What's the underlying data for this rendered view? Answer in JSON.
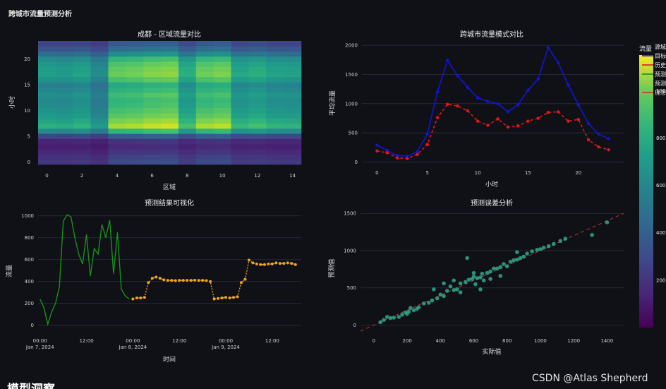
{
  "page": {
    "title": "跨城市流量预测分析",
    "watermark": "CSDN @Atlas Shepherd",
    "bottom_heading": "模型洞察"
  },
  "colors": {
    "background": "#0f1117",
    "target": "#1414d6",
    "history": "#e01818",
    "pred_actual": "#1a8f1a",
    "pred_forecast": "#f2a31b",
    "scatter": "#2fa88a",
    "ideal": "#c0392b"
  },
  "colorbar": {
    "title": "流量",
    "ticks": [
      "200",
      "400",
      "600",
      "800",
      "1000"
    ]
  },
  "legend": {
    "items": [
      "源城",
      "目标",
      "历史",
      "预测",
      "预测",
      "理想"
    ]
  },
  "chart_data": [
    {
      "type": "heatmap",
      "title": "成都 - 区域流量对比",
      "xlabel": "区域",
      "ylabel": "小时",
      "x_ticks": [
        "0",
        "2",
        "4",
        "6",
        "8",
        "10",
        "12",
        "14"
      ],
      "y_ticks": [
        "0",
        "5",
        "10",
        "15",
        "20"
      ],
      "xlim": [
        0,
        14
      ],
      "ylim": [
        0,
        23
      ],
      "zlim": [
        0,
        1150
      ],
      "zones": [
        0,
        1,
        2,
        3,
        4,
        5,
        6,
        7,
        8,
        9,
        10,
        11,
        12,
        13,
        14
      ],
      "hours": [
        0,
        1,
        2,
        3,
        4,
        5,
        6,
        7,
        8,
        9,
        10,
        11,
        12,
        13,
        14,
        15,
        16,
        17,
        18,
        19,
        20,
        21,
        22,
        23
      ],
      "zone_factor": [
        0.72,
        0.7,
        0.74,
        0.62,
        0.98,
        1.0,
        1.04,
        1.06,
        0.8,
        0.99,
        1.02,
        0.76,
        0.8,
        0.74,
        0.73
      ],
      "hour_profile": [
        260,
        230,
        180,
        140,
        170,
        340,
        760,
        1010,
        930,
        860,
        820,
        780,
        760,
        800,
        740,
        700,
        820,
        900,
        880,
        840,
        760,
        560,
        420,
        330
      ]
    },
    {
      "type": "line",
      "title": "跨城市流量模式对比",
      "xlabel": "小时",
      "ylabel": "平均流量",
      "x_ticks": [
        "0",
        "5",
        "10",
        "15",
        "20"
      ],
      "y_ticks": [
        "0",
        "500",
        "1000",
        "1500",
        "2000"
      ],
      "xlim": [
        -1.5,
        24.5
      ],
      "ylim": [
        -30,
        2050
      ],
      "x": [
        0,
        1,
        2,
        3,
        4,
        5,
        6,
        7,
        8,
        9,
        10,
        11,
        12,
        13,
        14,
        15,
        16,
        17,
        18,
        19,
        20,
        21,
        22,
        23
      ],
      "series": [
        {
          "name": "目标",
          "values": [
            290,
            200,
            110,
            100,
            180,
            480,
            1200,
            1740,
            1480,
            1280,
            1100,
            1040,
            1000,
            860,
            980,
            1230,
            1420,
            1960,
            1700,
            1320,
            980,
            660,
            480,
            400
          ]
        },
        {
          "name": "历史",
          "values": [
            190,
            160,
            70,
            60,
            130,
            300,
            760,
            990,
            960,
            880,
            700,
            630,
            740,
            600,
            620,
            700,
            750,
            850,
            860,
            700,
            730,
            380,
            260,
            210
          ]
        }
      ]
    },
    {
      "type": "line",
      "title": "预测结果可视化",
      "xlabel": "时间",
      "ylabel": "流量",
      "x_ticks": [
        {
          "label": "00:00",
          "sub": "Jan 7, 2024",
          "hours": 0
        },
        {
          "label": "12:00",
          "sub": "",
          "hours": 12
        },
        {
          "label": "00:00",
          "sub": "Jan 8, 2024",
          "hours": 24
        },
        {
          "label": "12:00",
          "sub": "",
          "hours": 36
        },
        {
          "label": "00:00",
          "sub": "Jan 9, 2024",
          "hours": 48
        },
        {
          "label": "12:00",
          "sub": "",
          "hours": 60
        }
      ],
      "y_ticks": [
        "0",
        "200",
        "400",
        "600",
        "800",
        "1000"
      ],
      "xlim": [
        -0.5,
        67.5
      ],
      "ylim": [
        -60,
        1050
      ],
      "series": [
        {
          "name": "实际",
          "style": "solid",
          "x": [
            0,
            1,
            2,
            3,
            4,
            5,
            6,
            7,
            8,
            9,
            10,
            11,
            12,
            13,
            14,
            15,
            16,
            17,
            18,
            19,
            20,
            21,
            22,
            23
          ],
          "values": [
            240,
            160,
            10,
            120,
            200,
            350,
            950,
            1010,
            990,
            800,
            650,
            560,
            830,
            450,
            700,
            650,
            920,
            800,
            960,
            470,
            850,
            330,
            270,
            240
          ]
        },
        {
          "name": "预测",
          "style": "dotted",
          "x": [
            24,
            25,
            26,
            27,
            28,
            29,
            30,
            31,
            32,
            33,
            34,
            35,
            36,
            37,
            38,
            39,
            40,
            41,
            42,
            43,
            44,
            45,
            46,
            47,
            48,
            49,
            50,
            51,
            52,
            53,
            54,
            55,
            56,
            57,
            58,
            59,
            60,
            61,
            62,
            63,
            64,
            65,
            66
          ],
          "values": [
            240,
            250,
            250,
            255,
            390,
            430,
            440,
            430,
            415,
            410,
            410,
            408,
            410,
            410,
            410,
            410,
            412,
            410,
            410,
            408,
            400,
            240,
            245,
            250,
            255,
            250,
            255,
            260,
            390,
            420,
            595,
            570,
            560,
            555,
            555,
            560,
            560,
            570,
            565,
            565,
            570,
            565,
            555
          ]
        }
      ]
    },
    {
      "type": "scatter",
      "title": "预测误差分析",
      "xlabel": "实际值",
      "ylabel": "预测值",
      "x_ticks": [
        "0",
        "200",
        "400",
        "600",
        "800",
        "1000",
        "1200",
        "1400"
      ],
      "y_ticks": [
        "0",
        "500",
        "1000",
        "1500"
      ],
      "xlim": [
        -80,
        1500
      ],
      "ylim": [
        -90,
        1540
      ],
      "points": [
        [
          40,
          40
        ],
        [
          60,
          70
        ],
        [
          80,
          110
        ],
        [
          100,
          95
        ],
        [
          120,
          100
        ],
        [
          150,
          110
        ],
        [
          170,
          140
        ],
        [
          190,
          170
        ],
        [
          200,
          150
        ],
        [
          210,
          180
        ],
        [
          220,
          230
        ],
        [
          240,
          200
        ],
        [
          260,
          220
        ],
        [
          270,
          240
        ],
        [
          300,
          290
        ],
        [
          330,
          300
        ],
        [
          350,
          330
        ],
        [
          380,
          360
        ],
        [
          400,
          410
        ],
        [
          420,
          390
        ],
        [
          440,
          460
        ],
        [
          460,
          520
        ],
        [
          480,
          470
        ],
        [
          500,
          480
        ],
        [
          520,
          560
        ],
        [
          550,
          580
        ],
        [
          570,
          610
        ],
        [
          590,
          620
        ],
        [
          600,
          650
        ],
        [
          610,
          550
        ],
        [
          620,
          630
        ],
        [
          640,
          640
        ],
        [
          650,
          690
        ],
        [
          660,
          600
        ],
        [
          680,
          700
        ],
        [
          700,
          720
        ],
        [
          720,
          760
        ],
        [
          740,
          760
        ],
        [
          760,
          780
        ],
        [
          780,
          820
        ],
        [
          800,
          790
        ],
        [
          820,
          850
        ],
        [
          840,
          870
        ],
        [
          860,
          880
        ],
        [
          880,
          900
        ],
        [
          900,
          920
        ],
        [
          920,
          960
        ],
        [
          950,
          990
        ],
        [
          980,
          1010
        ],
        [
          1000,
          1020
        ],
        [
          1020,
          1040
        ],
        [
          1050,
          1060
        ],
        [
          1080,
          1090
        ],
        [
          1120,
          1130
        ],
        [
          1150,
          1160
        ],
        [
          1310,
          1210
        ],
        [
          1400,
          1380
        ],
        [
          560,
          900
        ],
        [
          640,
          480
        ],
        [
          700,
          620
        ],
        [
          860,
          980
        ],
        [
          760,
          660
        ],
        [
          520,
          440
        ],
        [
          480,
          600
        ],
        [
          420,
          560
        ],
        [
          600,
          700
        ],
        [
          360,
          480
        ]
      ],
      "ideal_line": [
        [
          -80,
          -80
        ],
        [
          1500,
          1500
        ]
      ]
    }
  ]
}
